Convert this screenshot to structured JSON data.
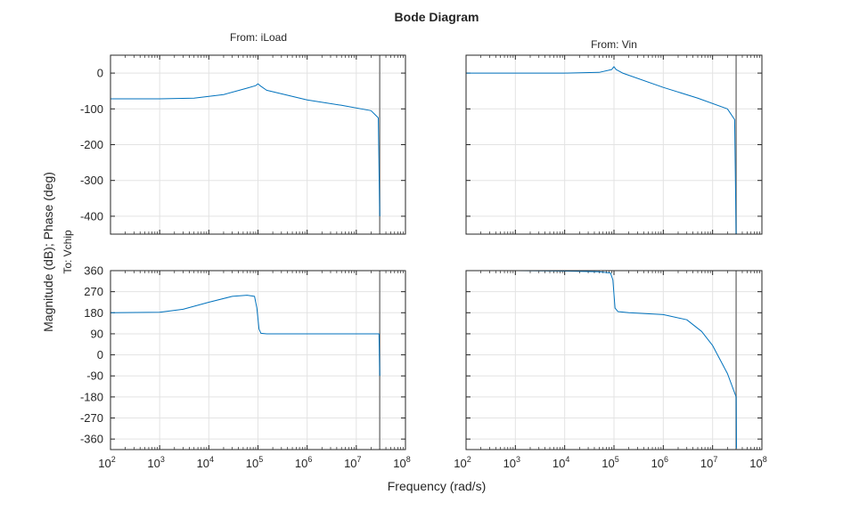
{
  "figure": {
    "title": "Bode Diagram",
    "xlabel": "Frequency (rad/s)",
    "ylabel": "Magnitude (dB); Phase (deg)",
    "output_label": "To: Vchip",
    "colors": {
      "line": "#0072bd",
      "grid": "#e3e3e3",
      "axes": "#262626",
      "marker": "#7f7f7f"
    }
  },
  "chart_data": [
    {
      "type": "line",
      "panel": "magnitude",
      "input": "From: iLoad",
      "xscale": "log",
      "xlim": [
        100,
        100000000
      ],
      "ylim": [
        -450,
        50
      ],
      "yticks": [
        0,
        -100,
        -200,
        -300,
        -400
      ],
      "grid": true,
      "marker_x": 30000000,
      "series": [
        {
          "x": [
            100,
            1000,
            5000,
            20000,
            60000,
            90000,
            100000,
            110000,
            150000,
            1000000,
            5000000,
            20000000,
            28000000,
            30000000
          ],
          "y": [
            -72,
            -72,
            -70,
            -60,
            -42,
            -35,
            -30,
            -35,
            -48,
            -75,
            -90,
            -105,
            -125,
            -400
          ]
        }
      ]
    },
    {
      "type": "line",
      "panel": "magnitude",
      "input": "From: Vin",
      "xscale": "log",
      "xlim": [
        100,
        100000000
      ],
      "ylim": [
        -450,
        50
      ],
      "yticks": [
        0,
        -100,
        -200,
        -300,
        -400
      ],
      "grid": true,
      "marker_x": 30000000,
      "series": [
        {
          "x": [
            100,
            1000,
            10000,
            50000,
            90000,
            100000,
            110000,
            150000,
            1000000,
            5000000,
            20000000,
            28000000,
            30000000
          ],
          "y": [
            0,
            0,
            0,
            2,
            10,
            18,
            10,
            0,
            -40,
            -70,
            -100,
            -130,
            -450
          ]
        }
      ]
    },
    {
      "type": "line",
      "panel": "phase",
      "input": "From: iLoad",
      "xscale": "log",
      "xlim": [
        100,
        100000000
      ],
      "ylim": [
        -405,
        360
      ],
      "yticks": [
        360,
        270,
        180,
        90,
        0,
        -90,
        -180,
        -270,
        -360
      ],
      "grid": true,
      "marker_x": 30000000,
      "series": [
        {
          "x": [
            100,
            1000,
            3000,
            10000,
            30000,
            60000,
            85000,
            95000,
            105000,
            115000,
            150000,
            1000000,
            10000000,
            29000000,
            30000000
          ],
          "y": [
            180,
            182,
            195,
            225,
            250,
            255,
            250,
            200,
            110,
            92,
            90,
            90,
            90,
            90,
            -90
          ]
        }
      ]
    },
    {
      "type": "line",
      "panel": "phase",
      "input": "From: Vin",
      "xscale": "log",
      "xlim": [
        100,
        100000000
      ],
      "ylim": [
        -405,
        360
      ],
      "yticks": [
        360,
        270,
        180,
        90,
        0,
        -90,
        -180,
        -270,
        -360
      ],
      "grid": true,
      "marker_x": 30000000,
      "series": [
        {
          "x": [
            100,
            1000,
            10000,
            50000,
            85000,
            95000,
            105000,
            120000,
            200000,
            1000000,
            3000000,
            6000000,
            10000000,
            20000000,
            30000000,
            30500000
          ],
          "y": [
            360,
            360,
            358,
            355,
            350,
            320,
            200,
            185,
            180,
            172,
            150,
            100,
            40,
            -80,
            -180,
            -400
          ]
        }
      ]
    }
  ]
}
